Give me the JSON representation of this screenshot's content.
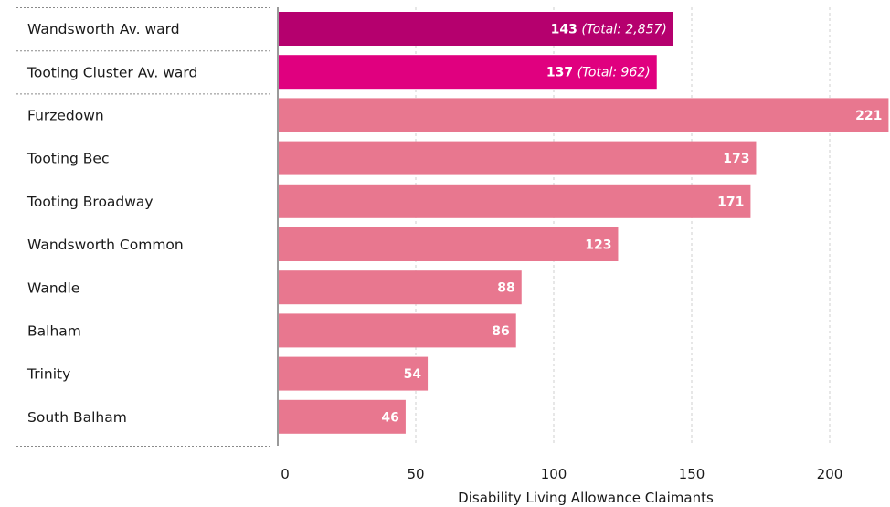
{
  "chart_data": {
    "type": "bar",
    "orientation": "horizontal",
    "xlabel": "Disability Living Allowance Claimants",
    "xlim": [
      0,
      220
    ],
    "xticks": [
      0,
      50,
      100,
      150,
      200
    ],
    "grid": true,
    "categories": [
      "Wandsworth Av. ward",
      "Tooting Cluster Av. ward",
      "Furzedown",
      "Tooting Bec",
      "Tooting Broadway",
      "Wandsworth Common",
      "Wandle",
      "Balham",
      "Trinity",
      "South Balham"
    ],
    "values": [
      143,
      137,
      221,
      173,
      171,
      123,
      88,
      86,
      54,
      46
    ],
    "value_labels": [
      "143",
      "137",
      "221",
      "173",
      "171",
      "123",
      "88",
      "86",
      "54",
      "46"
    ],
    "totals": [
      "(Total: 2,857)",
      "(Total: 962)",
      "",
      "",
      "",
      "",
      "",
      "",
      "",
      ""
    ],
    "colors": [
      "#b5006e",
      "#e0007f",
      "#e8778f",
      "#e8778f",
      "#e8778f",
      "#e8778f",
      "#e8778f",
      "#e8778f",
      "#e8778f",
      "#e8778f"
    ]
  }
}
